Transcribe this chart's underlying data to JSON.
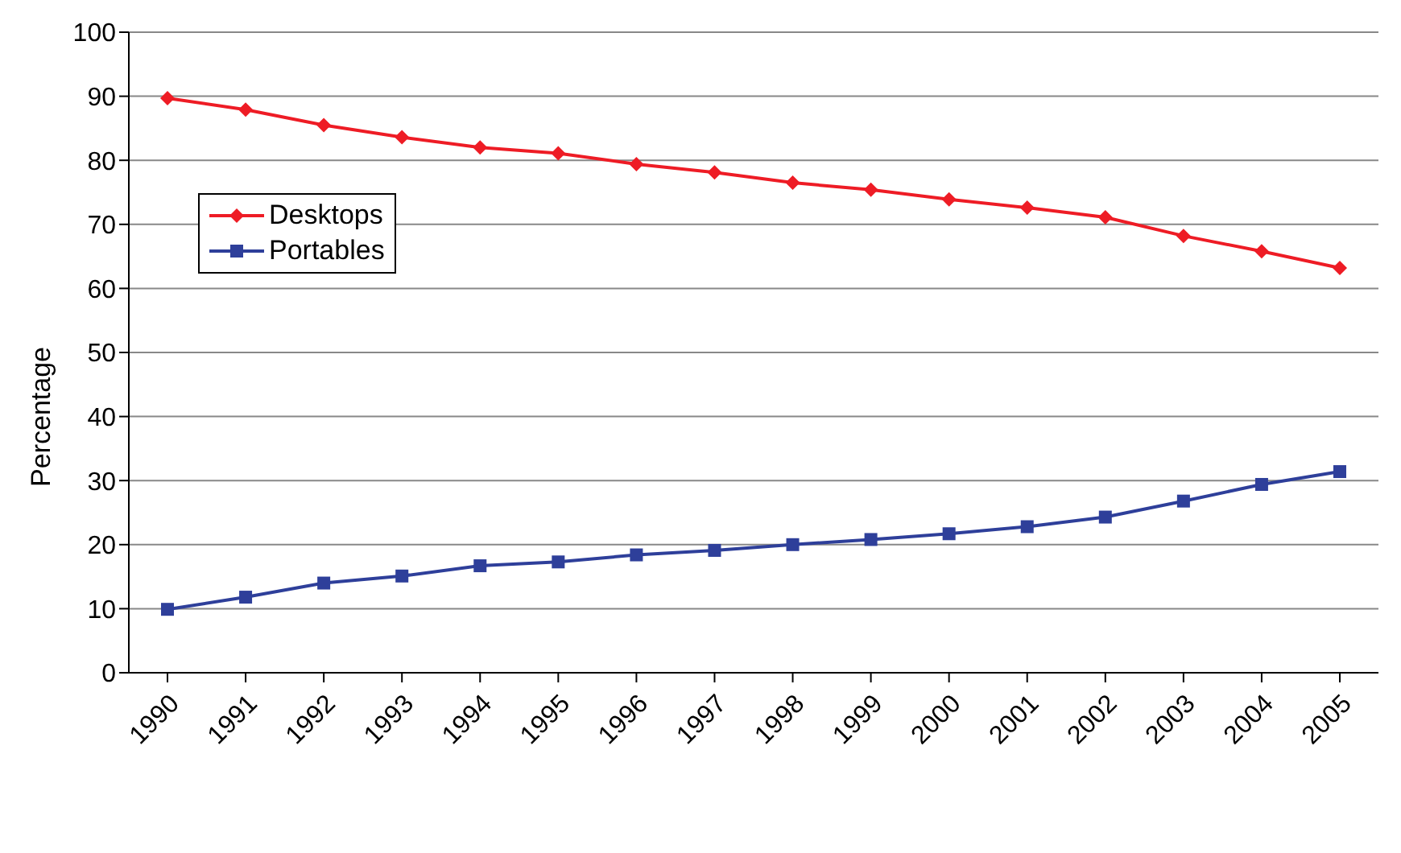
{
  "chart_data": {
    "type": "line",
    "ylabel": "Percentage",
    "categories": [
      "1990",
      "1991",
      "1992",
      "1993",
      "1994",
      "1995",
      "1996",
      "1997",
      "1998",
      "1999",
      "2000",
      "2001",
      "2002",
      "2003",
      "2004",
      "2005"
    ],
    "series": [
      {
        "name": "Desktops",
        "color": "#ee1c25",
        "marker": "diamond",
        "values": [
          89.7,
          87.9,
          85.5,
          83.6,
          82.0,
          81.1,
          79.4,
          78.1,
          76.5,
          75.4,
          73.9,
          72.6,
          71.1,
          68.2,
          65.8,
          63.2
        ]
      },
      {
        "name": "Portables",
        "color": "#2e3f9a",
        "marker": "square",
        "values": [
          9.9,
          11.8,
          14.0,
          15.1,
          16.7,
          17.3,
          18.4,
          19.1,
          20.0,
          20.8,
          21.7,
          22.8,
          24.3,
          26.8,
          29.4,
          31.4
        ]
      }
    ],
    "ylim": [
      0,
      100
    ],
    "yticks": [
      0,
      10,
      20,
      30,
      40,
      50,
      60,
      70,
      80,
      90,
      100
    ],
    "grid": "y",
    "legend": "top left"
  }
}
